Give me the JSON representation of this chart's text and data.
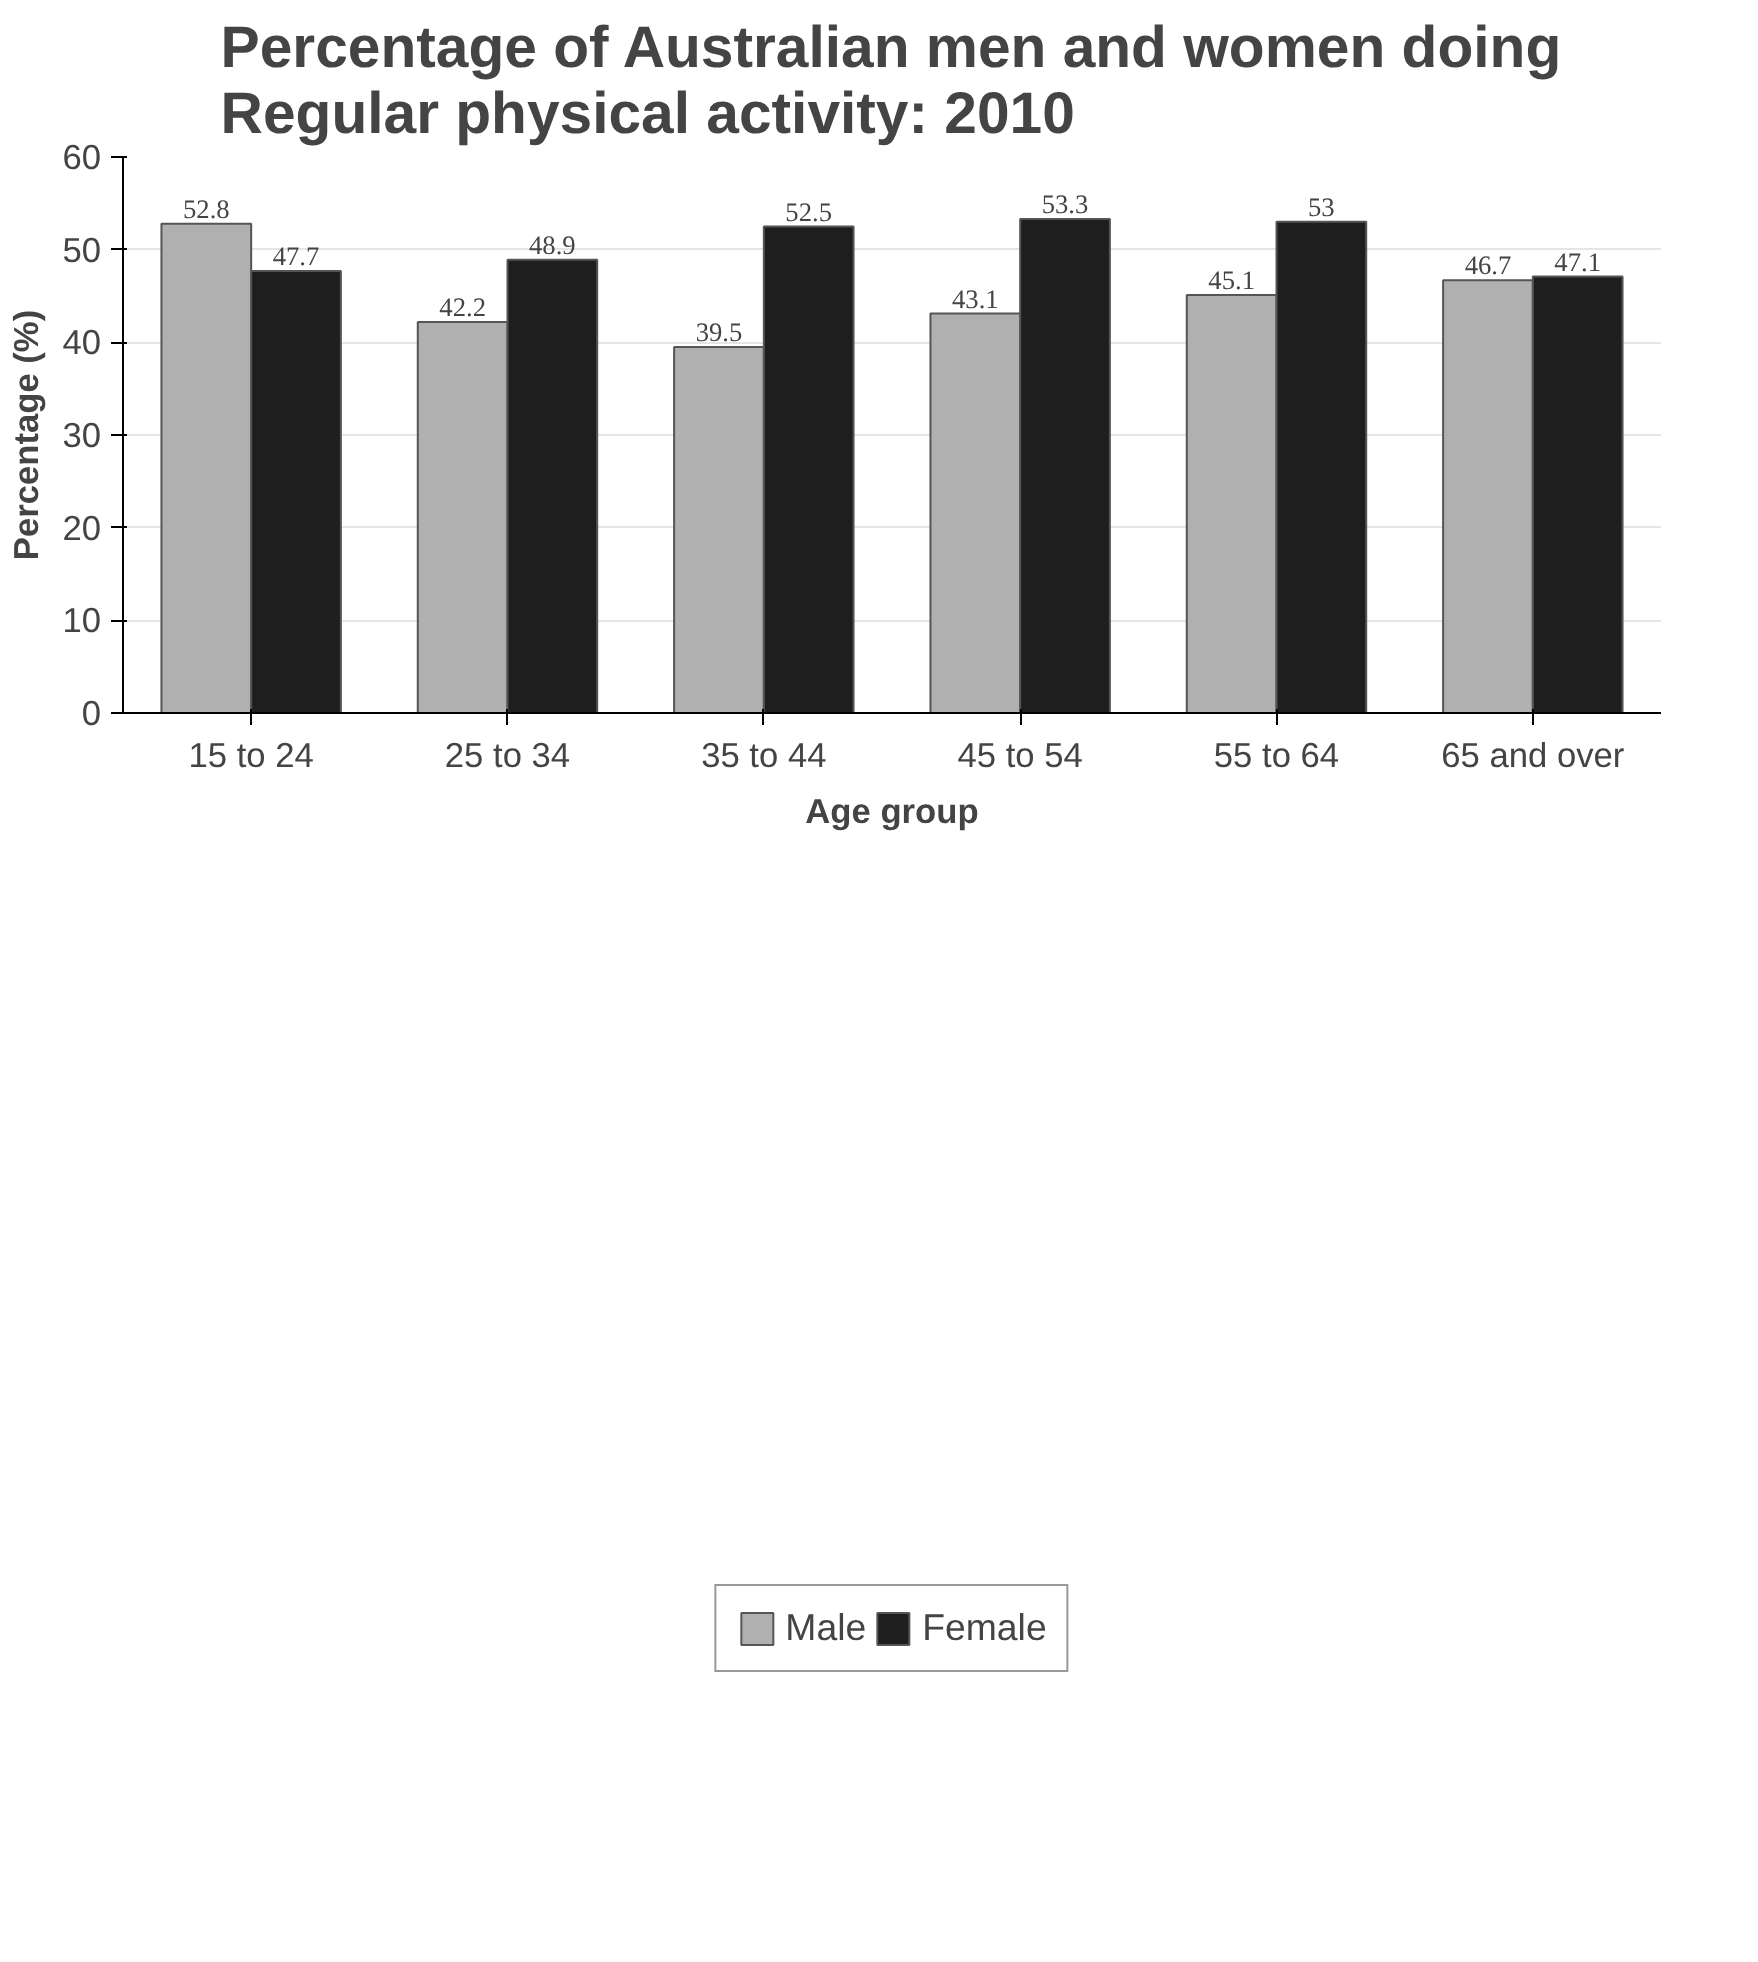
{
  "chart_data": {
    "type": "bar",
    "title": "Percentage of Australian men and women doing Regular physical activity: 2010",
    "xlabel": "Age group",
    "ylabel": "Percentage (%)",
    "categories": [
      "15 to 24",
      "25 to 34",
      "35 to 44",
      "45 to 54",
      "55 to 64",
      "65 and over"
    ],
    "series": [
      {
        "name": "Male",
        "color": "#b0b0b0",
        "values": [
          52.8,
          42.2,
          39.5,
          43.1,
          45.1,
          46.7
        ]
      },
      {
        "name": "Female",
        "color": "#1e1e1e",
        "values": [
          47.7,
          48.9,
          52.5,
          53.3,
          53,
          47.1
        ]
      }
    ],
    "ylim": [
      0,
      60
    ],
    "yticks": [
      0,
      10,
      20,
      30,
      40,
      50,
      60
    ],
    "grid": "y",
    "legend": "bottom",
    "data_labels": true
  }
}
